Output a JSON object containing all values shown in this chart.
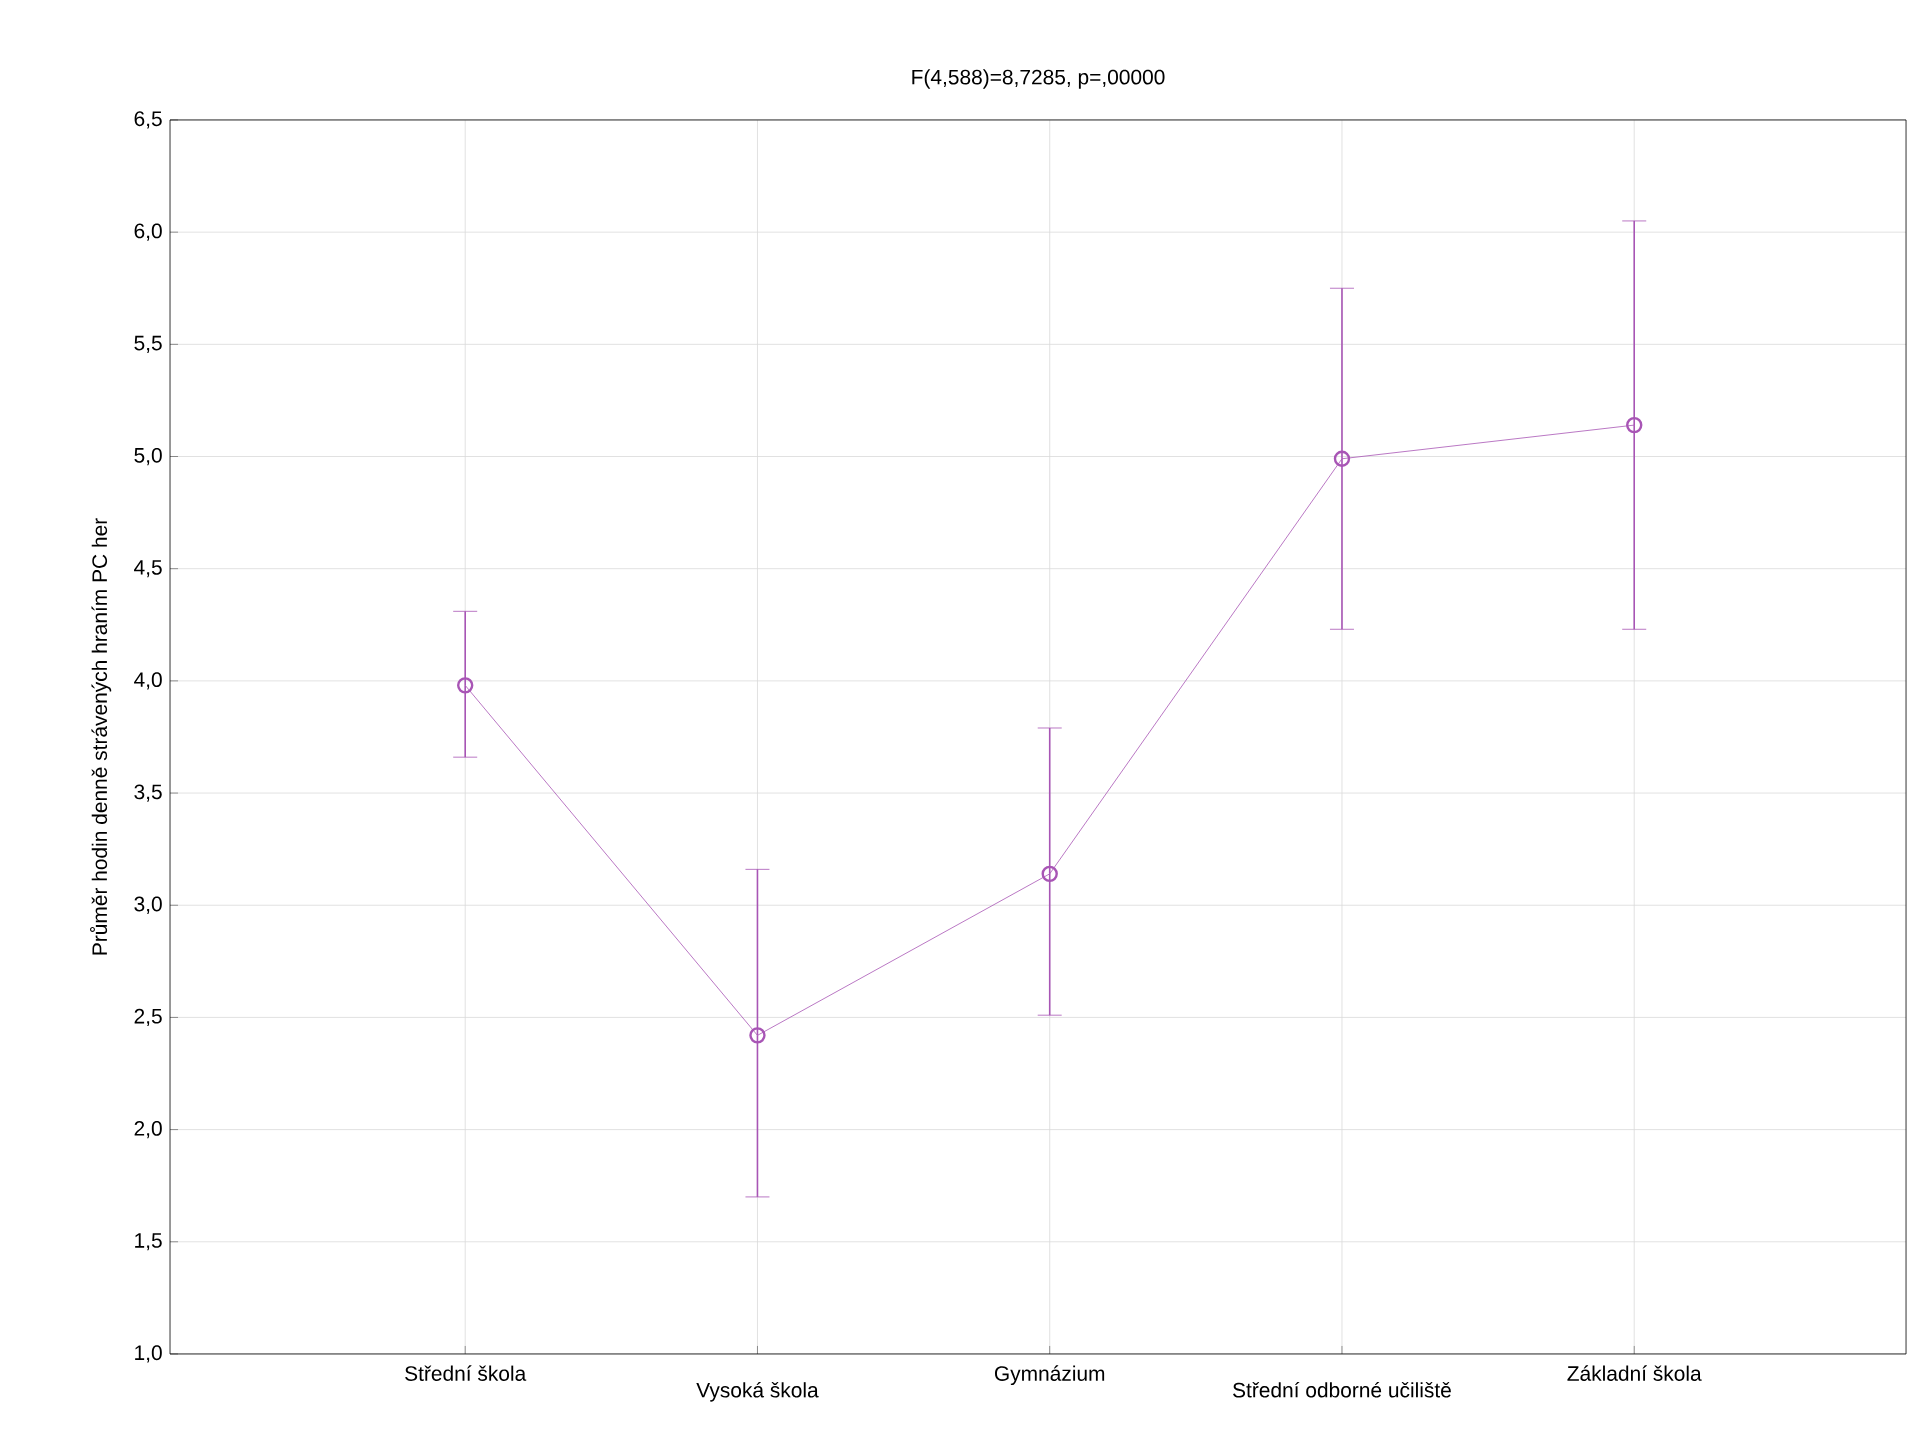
{
  "chart_data": {
    "type": "line",
    "title": "F(4,588)=8,7285, p=,00000",
    "ylabel": "Průměr hodin denně strávených hraním PC her",
    "categories": [
      "Střední škola",
      "Vysoká škola",
      "Gymnázium",
      "Střední odborné učiliště",
      "Základní škola"
    ],
    "values": [
      3.98,
      2.42,
      3.14,
      4.99,
      5.14
    ],
    "errors": [
      [
        3.66,
        4.31
      ],
      [
        1.7,
        3.16
      ],
      [
        2.51,
        3.79
      ],
      [
        4.23,
        5.75
      ],
      [
        4.23,
        6.05
      ]
    ],
    "color": "#a855b5",
    "marker": "circle",
    "line_style": "solid",
    "grid": true,
    "ylim": [
      1.0,
      6.5
    ],
    "yticks": [
      {
        "value": 1.0,
        "label": "1,0"
      },
      {
        "value": 1.5,
        "label": "1,5"
      },
      {
        "value": 2.0,
        "label": "2,0"
      },
      {
        "value": 2.5,
        "label": "2,5"
      },
      {
        "value": 3.0,
        "label": "3,0"
      },
      {
        "value": 3.5,
        "label": "3,5"
      },
      {
        "value": 4.0,
        "label": "4,0"
      },
      {
        "value": 4.5,
        "label": "4,5"
      },
      {
        "value": 5.0,
        "label": "5,0"
      },
      {
        "value": 5.5,
        "label": "5,5"
      },
      {
        "value": 6.0,
        "label": "6,0"
      },
      {
        "value": 6.5,
        "label": "6,5"
      }
    ]
  }
}
